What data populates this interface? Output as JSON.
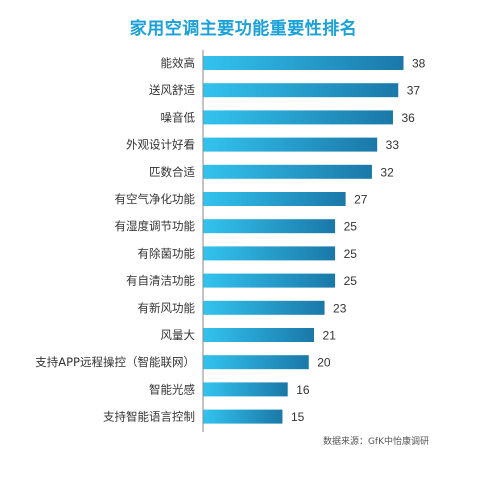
{
  "title": "家用空调主要功能重要性排名",
  "source": "数据来源：GfK中怡康调研",
  "colors": {
    "title": "#1ba1d8",
    "bar_light": "#33c3ee",
    "bar_dark": "#1a78a8",
    "axis": "#888888"
  },
  "chart_data": {
    "type": "bar",
    "orientation": "horizontal",
    "title": "家用空调主要功能重要性排名",
    "xlabel": "",
    "ylabel": "",
    "categories": [
      "能效高",
      "送风舒适",
      "噪音低",
      "外观设计好看",
      "匹数合适",
      "有空气净化功能",
      "有湿度调节功能",
      "有除菌功能",
      "有自清洁功能",
      "有新风功能",
      "风量大",
      "支持APP远程操控（智能联网）",
      "智能光感",
      "支持智能语言控制"
    ],
    "values": [
      38,
      37,
      36,
      33,
      32,
      27,
      25,
      25,
      25,
      23,
      21,
      20,
      16,
      15
    ],
    "data_labels": true,
    "grid": false,
    "legend": "none"
  }
}
